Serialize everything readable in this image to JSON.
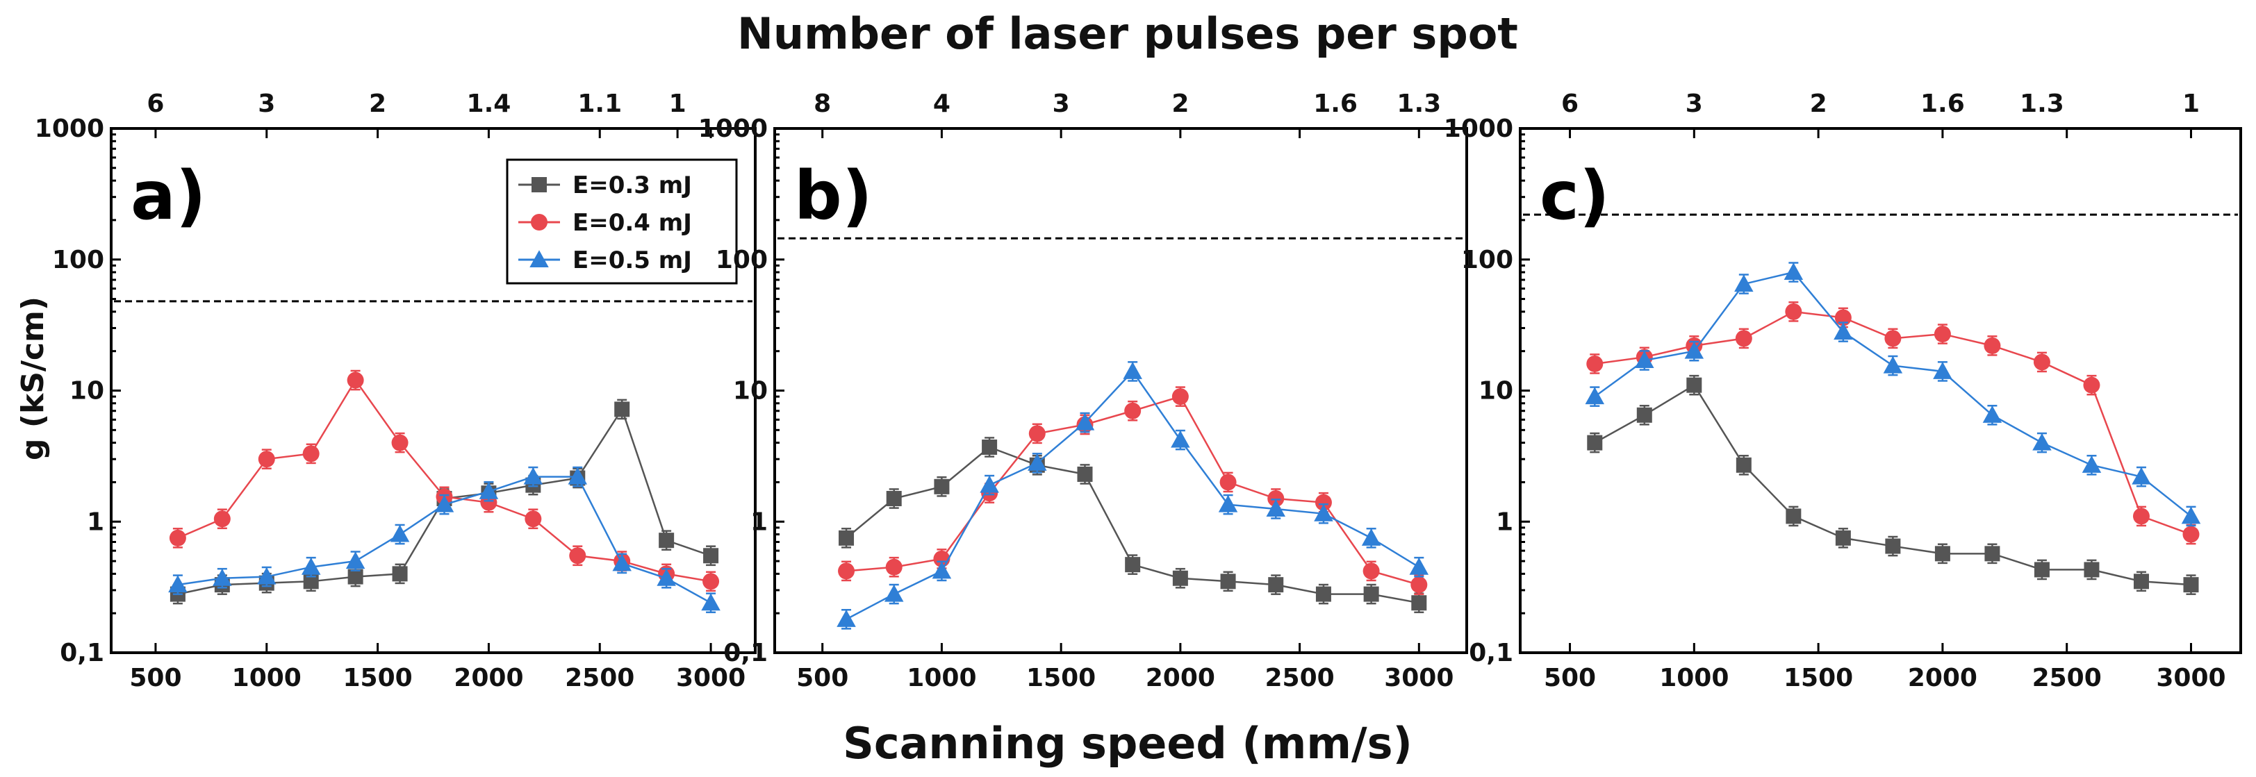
{
  "figure": {
    "top_title": "Number of laser pulses per spot",
    "bottom_title": "Scanning speed (mm/s)",
    "y_label": "g (kS/cm)"
  },
  "chart_data": [
    {
      "type": "line",
      "panel": "a)",
      "xlim": [
        300,
        3200
      ],
      "ylim": [
        0.1,
        1000
      ],
      "yscale": "log",
      "x_ticks": [
        500,
        1000,
        1500,
        2000,
        2500,
        3000
      ],
      "x_tick_labels": [
        "500",
        "1000",
        "1500",
        "2000",
        "2500",
        "3000"
      ],
      "y_ticks": [
        0.1,
        1,
        10,
        100,
        1000
      ],
      "y_tick_labels": [
        "0,1",
        "1",
        "10",
        "100",
        "1000"
      ],
      "top_ticks": [
        500,
        1000,
        1500,
        2000,
        2500,
        2850,
        3000
      ],
      "top_tick_labels": [
        "6",
        "3",
        "2",
        "1.4",
        "1.1",
        "1"
      ],
      "top_label_x": [
        500,
        1000,
        1500,
        2000,
        2500,
        2850
      ],
      "reference_line": 48,
      "legend": true,
      "legend_position": "top-right",
      "x": [
        600,
        800,
        1000,
        1200,
        1400,
        1600,
        1800,
        2000,
        2200,
        2400,
        2600,
        2800,
        3000
      ],
      "series": [
        {
          "name": "E=0.3 mJ",
          "color": "#555555",
          "marker": "square",
          "values": [
            0.28,
            0.33,
            0.34,
            0.35,
            0.38,
            0.4,
            1.5,
            1.65,
            1.9,
            2.15,
            7.2,
            0.72,
            0.55
          ]
        },
        {
          "name": "E=0.4 mJ",
          "color": "#e8474e",
          "marker": "circle",
          "values": [
            0.75,
            1.05,
            3.0,
            3.3,
            12.0,
            4.0,
            1.55,
            1.4,
            1.05,
            0.55,
            0.5,
            0.4,
            0.35
          ]
        },
        {
          "name": "E=0.5 mJ",
          "color": "#2f7fd6",
          "marker": "triangle",
          "values": [
            0.33,
            0.37,
            0.38,
            0.45,
            0.5,
            0.8,
            1.35,
            1.7,
            2.2,
            2.2,
            0.48,
            0.37,
            0.24
          ]
        }
      ]
    },
    {
      "type": "line",
      "panel": "b)",
      "xlim": [
        300,
        3200
      ],
      "ylim": [
        0.1,
        1000
      ],
      "yscale": "log",
      "x_ticks": [
        500,
        1000,
        1500,
        2000,
        2500,
        3000
      ],
      "x_tick_labels": [
        "500",
        "1000",
        "1500",
        "2000",
        "2500",
        "3000"
      ],
      "y_ticks": [
        0.1,
        1,
        10,
        100,
        1000
      ],
      "y_tick_labels": [
        "0,1",
        "1",
        "10",
        "100",
        "1000"
      ],
      "top_ticks": [
        500,
        1000,
        1500,
        2000,
        2500,
        3000
      ],
      "top_tick_labels": [
        "8",
        "4",
        "3",
        "2",
        "1.6",
        "1.3"
      ],
      "top_label_x": [
        500,
        1000,
        1500,
        2000,
        2650,
        3000
      ],
      "reference_line": 145,
      "legend": false,
      "x": [
        600,
        800,
        1000,
        1200,
        1400,
        1600,
        1800,
        2000,
        2200,
        2400,
        2600,
        2800,
        3000
      ],
      "series": [
        {
          "name": "E=0.3 mJ",
          "color": "#555555",
          "marker": "square",
          "values": [
            0.75,
            1.5,
            1.85,
            3.7,
            2.7,
            2.3,
            0.47,
            0.37,
            0.35,
            0.33,
            0.28,
            0.28,
            0.24
          ]
        },
        {
          "name": "E=0.4 mJ",
          "color": "#e8474e",
          "marker": "circle",
          "values": [
            0.42,
            0.45,
            0.52,
            1.65,
            4.7,
            5.5,
            7.0,
            9.0,
            2.0,
            1.5,
            1.4,
            0.42,
            0.33
          ]
        },
        {
          "name": "E=0.5 mJ",
          "color": "#2f7fd6",
          "marker": "triangle",
          "values": [
            0.18,
            0.28,
            0.42,
            1.9,
            2.8,
            5.7,
            14.0,
            4.2,
            1.35,
            1.25,
            1.15,
            0.75,
            0.45
          ]
        }
      ]
    },
    {
      "type": "line",
      "panel": "c)",
      "xlim": [
        300,
        3200
      ],
      "ylim": [
        0.1,
        1000
      ],
      "yscale": "log",
      "x_ticks": [
        500,
        1000,
        1500,
        2000,
        2500,
        3000
      ],
      "x_tick_labels": [
        "500",
        "1000",
        "1500",
        "2000",
        "2500",
        "3000"
      ],
      "y_ticks": [
        0.1,
        1,
        10,
        100,
        1000
      ],
      "y_tick_labels": [
        "0,1",
        "1",
        "10",
        "100",
        "1000"
      ],
      "top_ticks": [
        500,
        1000,
        1500,
        2000,
        2500,
        3000
      ],
      "top_tick_labels": [
        "6",
        "3",
        "2",
        "1.6",
        "1.3",
        "1"
      ],
      "top_label_x": [
        500,
        1000,
        1500,
        2000,
        2400,
        3000
      ],
      "reference_line": 220,
      "legend": false,
      "x": [
        600,
        800,
        1000,
        1200,
        1400,
        1600,
        1800,
        2000,
        2200,
        2400,
        2600,
        2800,
        3000
      ],
      "series": [
        {
          "name": "E=0.3 mJ",
          "color": "#555555",
          "marker": "square",
          "values": [
            4.0,
            6.5,
            11.0,
            2.7,
            1.1,
            0.75,
            0.65,
            0.57,
            0.57,
            0.43,
            0.43,
            0.35,
            0.33
          ]
        },
        {
          "name": "E=0.4 mJ",
          "color": "#e8474e",
          "marker": "circle",
          "values": [
            16.0,
            18.0,
            22.0,
            25.0,
            40.0,
            36.0,
            25.0,
            27.0,
            22.0,
            16.5,
            11.0,
            1.1,
            0.8
          ]
        },
        {
          "name": "E=0.5 mJ",
          "color": "#2f7fd6",
          "marker": "triangle",
          "values": [
            9.0,
            17.0,
            20.0,
            65.0,
            80.0,
            28.0,
            15.5,
            14.0,
            6.5,
            4.0,
            2.7,
            2.2,
            1.1
          ]
        }
      ]
    }
  ]
}
